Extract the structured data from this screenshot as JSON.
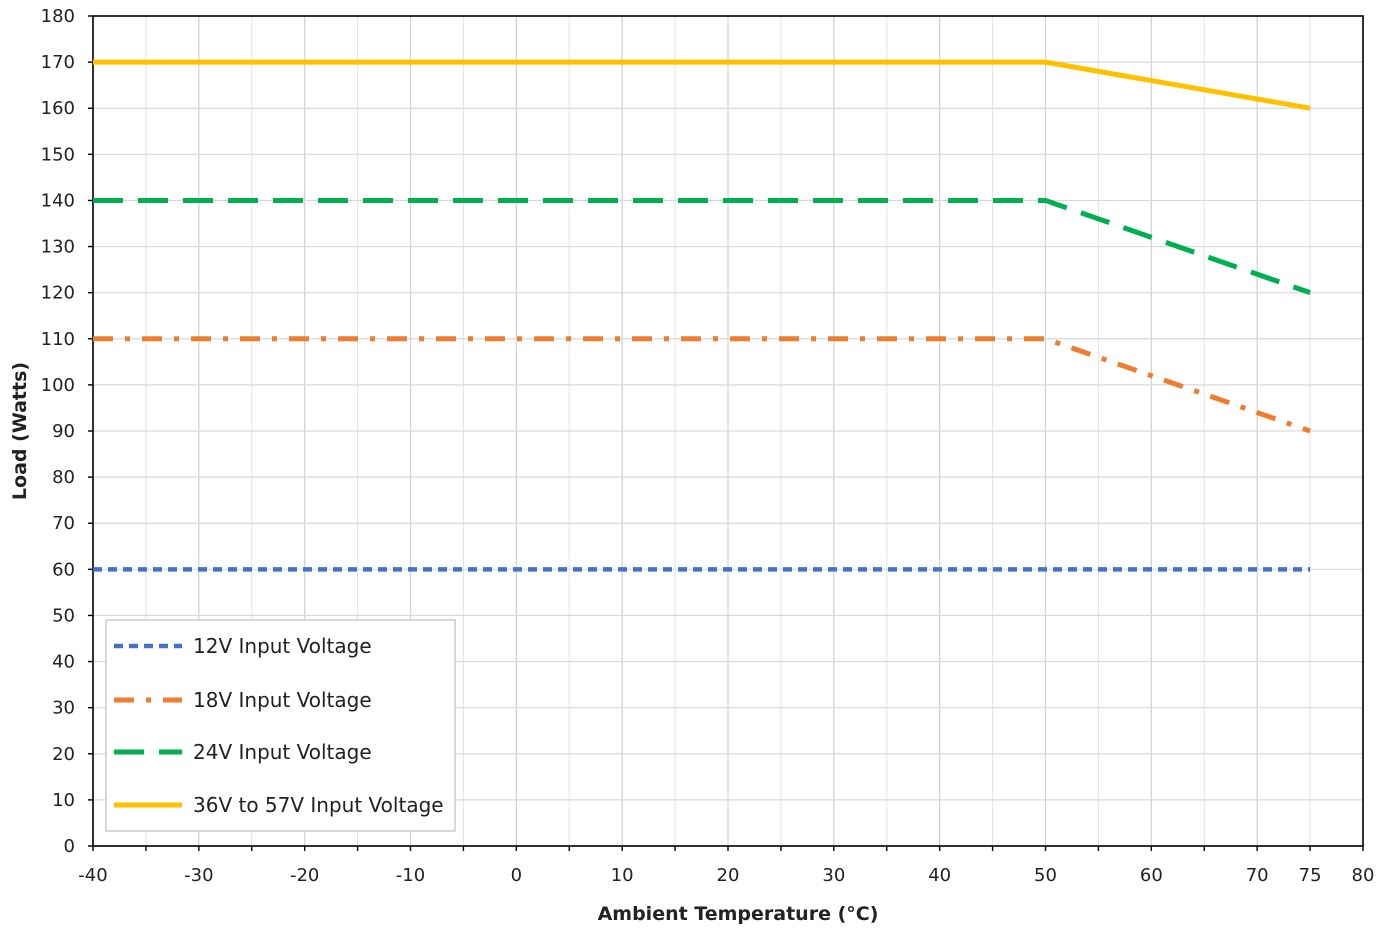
{
  "chart_data": {
    "type": "line",
    "title": "",
    "xlabel": "Ambient Temperature (°C)",
    "ylabel": "Load (Watts)",
    "xlim": [
      -40,
      80
    ],
    "ylim": [
      0,
      180
    ],
    "x_ticks": [
      -40,
      -30,
      -20,
      -10,
      0,
      10,
      20,
      30,
      40,
      50,
      60,
      70,
      75,
      80
    ],
    "y_ticks": [
      0,
      10,
      20,
      30,
      40,
      50,
      60,
      70,
      80,
      90,
      100,
      110,
      120,
      130,
      140,
      150,
      160,
      170,
      180
    ],
    "x_minor_step": 5,
    "grid": true,
    "legend_position": "bottom-left",
    "series": [
      {
        "name": "12V Input Voltage",
        "color": "#4472C4",
        "style": "dotted",
        "x": [
          -40,
          50,
          75
        ],
        "y": [
          60,
          60,
          60
        ]
      },
      {
        "name": "18V Input Voltage",
        "color": "#ED7D31",
        "style": "dash-dot",
        "x": [
          -40,
          50,
          75
        ],
        "y": [
          110,
          110,
          90
        ]
      },
      {
        "name": "24V Input Voltage",
        "color": "#00B050",
        "style": "dashed",
        "x": [
          -40,
          50,
          75
        ],
        "y": [
          140,
          140,
          120
        ]
      },
      {
        "name": "36V to 57V Input Voltage",
        "color": "#FFC000",
        "style": "solid",
        "x": [
          -40,
          50,
          75
        ],
        "y": [
          170,
          170,
          160
        ]
      }
    ]
  }
}
